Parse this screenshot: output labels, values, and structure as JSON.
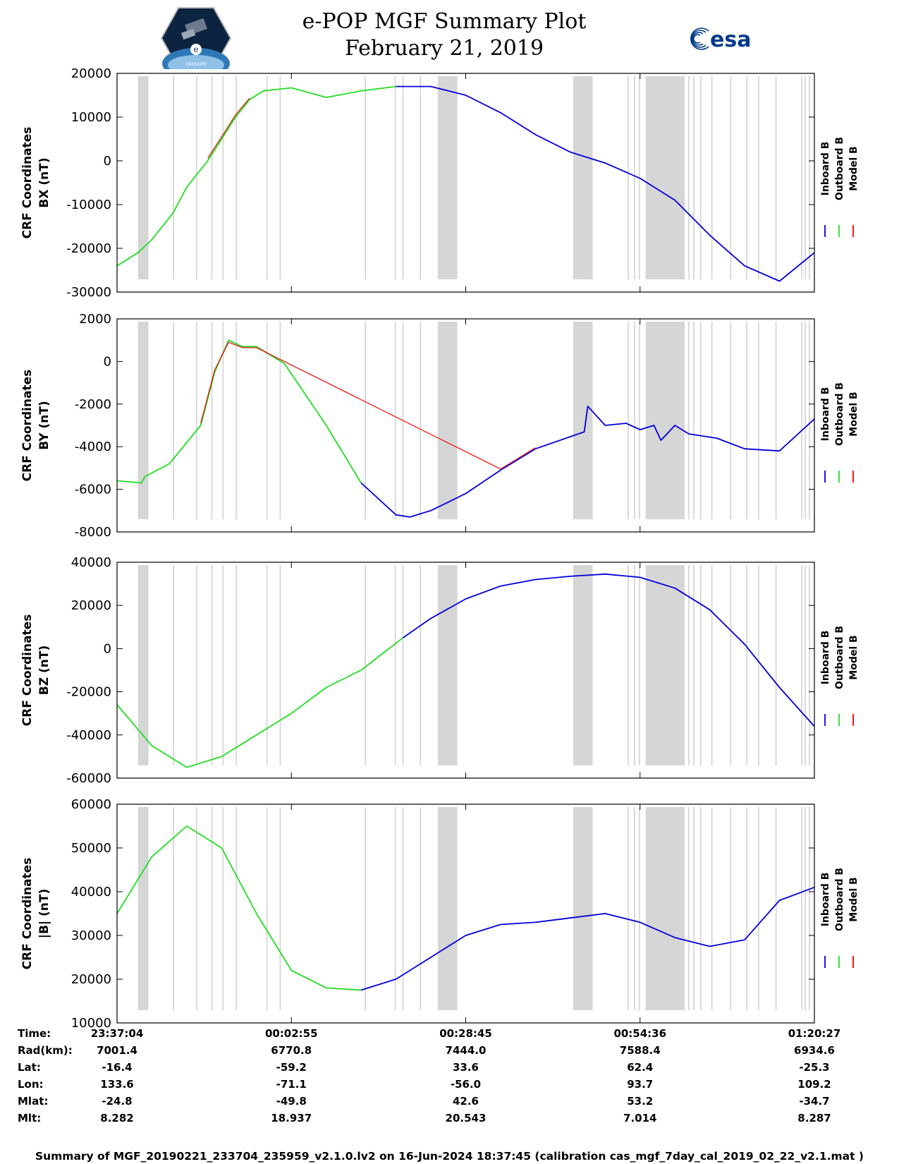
{
  "header": {
    "title": "e-POP MGF Summary Plot",
    "date": "February 21, 2019",
    "esa_text": "esa",
    "cassiope_text": "CASSIOPE"
  },
  "legend": {
    "inboard": "Inboard B",
    "outboard": "Outboard B",
    "model": "Model B"
  },
  "colors": {
    "inboard": "#0000dd",
    "outboard": "#22dd22",
    "model": "#ee0000",
    "gap": "#d6d6d6"
  },
  "chart_data": [
    {
      "type": "line",
      "ylabel_line1": "CRF Coordinates",
      "ylabel_line2": "BX (nT)",
      "ylim": [
        -30000,
        20000
      ],
      "yticks": [
        20000,
        10000,
        0,
        -10000,
        -20000,
        -30000
      ],
      "ytick_labels": [
        "20000",
        "10000",
        "0",
        "-10000",
        "-20000",
        "-30000"
      ],
      "series": [
        {
          "name": "Outboard B",
          "x": [
            0,
            0.03,
            0.05,
            0.08,
            0.1,
            0.13,
            0.15,
            0.17,
            0.19,
            0.21,
            0.25,
            0.3,
            0.35,
            0.4
          ],
          "values": [
            -24000,
            -21000,
            -18000,
            -12000,
            -6000,
            0,
            5000,
            10000,
            14000,
            16000,
            16700,
            14500,
            16000,
            17000
          ]
        },
        {
          "name": "Inboard B",
          "x": [
            0.4,
            0.45,
            0.5,
            0.55,
            0.6,
            0.65,
            0.7,
            0.75,
            0.8,
            0.85,
            0.9,
            0.95,
            1.0
          ],
          "values": [
            17000,
            17000,
            15000,
            11000,
            6000,
            2000,
            -500,
            -4000,
            -9000,
            -17000,
            -24000,
            -27500,
            -21000
          ]
        },
        {
          "name": "Model B",
          "x": [
            0.13,
            0.15,
            0.17,
            0.19
          ],
          "values": [
            600,
            5500,
            10500,
            14300
          ]
        }
      ]
    },
    {
      "type": "line",
      "ylabel_line1": "CRF Coordinates",
      "ylabel_line2": "BY (nT)",
      "ylim": [
        -8000,
        2000
      ],
      "yticks": [
        2000,
        0,
        -2000,
        -4000,
        -6000,
        -8000
      ],
      "ytick_labels": [
        "2000",
        "0",
        "-2000",
        "-4000",
        "-6000",
        "-8000"
      ],
      "series": [
        {
          "name": "Outboard B",
          "x": [
            0,
            0.035,
            0.04,
            0.075,
            0.12,
            0.14,
            0.16,
            0.18,
            0.2,
            0.24,
            0.3,
            0.35
          ],
          "values": [
            -5600,
            -5700,
            -5400,
            -4800,
            -3000,
            -500,
            1000,
            700,
            700,
            -100,
            -3000,
            -5700
          ]
        },
        {
          "name": "Inboard B",
          "x": [
            0.35,
            0.4,
            0.42,
            0.45,
            0.5,
            0.55,
            0.6,
            0.67,
            0.675,
            0.7,
            0.73,
            0.75,
            0.77,
            0.78,
            0.8,
            0.82,
            0.86,
            0.9,
            0.95,
            1.0
          ],
          "values": [
            -5700,
            -7200,
            -7300,
            -7000,
            -6200,
            -5100,
            -4100,
            -3300,
            -2100,
            -3000,
            -2900,
            -3200,
            -3000,
            -3700,
            -3000,
            -3400,
            -3600,
            -4100,
            -4200,
            -2700
          ]
        },
        {
          "name": "Model B",
          "x": [
            0.12,
            0.14,
            0.16,
            0.18,
            0.2,
            0.55,
            0.6
          ],
          "values": [
            -2900,
            -400,
            900,
            650,
            650,
            -5050,
            -4050
          ]
        }
      ]
    },
    {
      "type": "line",
      "ylabel_line1": "CRF Coordinates",
      "ylabel_line2": "BZ (nT)",
      "ylim": [
        -60000,
        40000
      ],
      "yticks": [
        40000,
        20000,
        0,
        -20000,
        -40000,
        -60000
      ],
      "ytick_labels": [
        "40000",
        "20000",
        "0",
        "-20000",
        "-40000",
        "-60000"
      ],
      "series": [
        {
          "name": "Outboard B",
          "x": [
            0,
            0.05,
            0.1,
            0.15,
            0.2,
            0.25,
            0.3,
            0.35,
            0.41
          ],
          "values": [
            -26000,
            -45000,
            -55000,
            -50000,
            -40000,
            -30000,
            -18000,
            -10000,
            5000
          ]
        },
        {
          "name": "Inboard B",
          "x": [
            0.41,
            0.45,
            0.5,
            0.55,
            0.6,
            0.65,
            0.7,
            0.75,
            0.8,
            0.85,
            0.9,
            0.95,
            1.0
          ],
          "values": [
            5000,
            14000,
            23000,
            29000,
            32000,
            33500,
            34500,
            33000,
            28000,
            18000,
            2000,
            -18000,
            -36000
          ]
        }
      ]
    },
    {
      "type": "line",
      "ylabel_line1": "CRF Coordinates",
      "ylabel_line2": "|B| (nT)",
      "ylim": [
        10000,
        60000
      ],
      "yticks": [
        60000,
        50000,
        40000,
        30000,
        20000,
        10000
      ],
      "ytick_labels": [
        "60000",
        "50000",
        "40000",
        "30000",
        "20000",
        "10000"
      ],
      "series": [
        {
          "name": "Outboard B",
          "x": [
            0,
            0.05,
            0.1,
            0.15,
            0.2,
            0.25,
            0.3,
            0.35
          ],
          "values": [
            35000,
            48000,
            55000,
            50000,
            35000,
            22000,
            18000,
            17500
          ]
        },
        {
          "name": "Inboard B",
          "x": [
            0.35,
            0.4,
            0.45,
            0.5,
            0.55,
            0.6,
            0.65,
            0.7,
            0.75,
            0.8,
            0.85,
            0.9,
            0.95,
            1.0
          ],
          "values": [
            17500,
            20000,
            25000,
            30000,
            32500,
            33000,
            34000,
            35000,
            33000,
            29500,
            27500,
            29000,
            38000,
            41000
          ]
        }
      ]
    }
  ],
  "gap_bands": [
    [
      0.03,
      0.045
    ],
    [
      0.46,
      0.488
    ],
    [
      0.654,
      0.682
    ],
    [
      0.758,
      0.814
    ]
  ],
  "gap_lines": [
    0.081,
    0.114,
    0.136,
    0.152,
    0.171,
    0.215,
    0.234,
    0.356,
    0.399,
    0.41,
    0.435,
    0.487,
    0.66,
    0.671,
    0.733,
    0.742,
    0.749,
    0.82,
    0.827,
    0.837,
    0.853,
    0.88,
    0.903,
    0.92,
    0.945,
    0.982,
    0.987,
    0.993
  ],
  "xaxis": {
    "tick_fractions": [
      0,
      0.25,
      0.5,
      0.75,
      1.0
    ],
    "row_labels": [
      "Time:",
      "Rad(km):",
      "Lat:",
      "Lon:",
      "Mlat:",
      "Mlt:"
    ],
    "columns": [
      {
        "time": "23:37:04",
        "rad": "7001.4",
        "lat": "-16.4",
        "lon": "133.6",
        "mlat": "-24.8",
        "mlt": "8.282"
      },
      {
        "time": "00:02:55",
        "rad": "6770.8",
        "lat": "-59.2",
        "lon": "-71.1",
        "mlat": "-49.8",
        "mlt": "18.937"
      },
      {
        "time": "00:28:45",
        "rad": "7444.0",
        "lat": "33.6",
        "lon": "-56.0",
        "mlat": "42.6",
        "mlt": "20.543"
      },
      {
        "time": "00:54:36",
        "rad": "7588.4",
        "lat": "62.4",
        "lon": "93.7",
        "mlat": "53.2",
        "mlt": "7.014"
      },
      {
        "time": "01:20:27",
        "rad": "6934.6",
        "lat": "-25.3",
        "lon": "109.2",
        "mlat": "-34.7",
        "mlt": "8.287"
      }
    ]
  },
  "footer": "Summary of MGF_20190221_233704_235959_v2.1.0.lv2 on 16-Jun-2024 18:37:45 (calibration cas_mgf_7day_cal_2019_02_22_v2.1.mat )"
}
